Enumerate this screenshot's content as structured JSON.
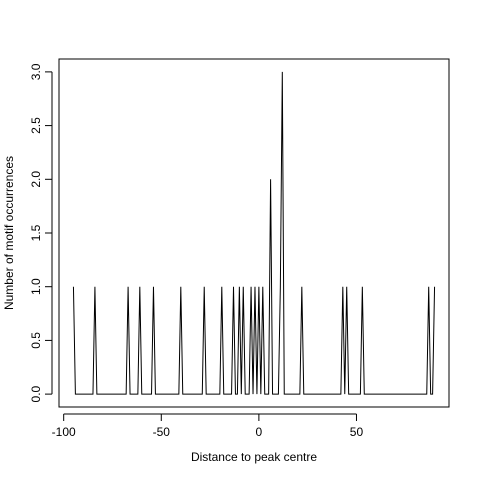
{
  "chart_data": {
    "type": "line",
    "xlabel": "Distance to peak centre",
    "ylabel": "Number of motif occurrences",
    "x": [
      -95,
      -94,
      -85,
      -84,
      -83,
      -68,
      -67,
      -66,
      -62,
      -61,
      -60,
      -55,
      -54,
      -53,
      -41,
      -40,
      -39,
      -29,
      -28,
      -27,
      -20,
      -19,
      -18,
      -14,
      -13,
      -12,
      -11,
      -10,
      -9,
      -8,
      -7,
      -5,
      -4,
      -3,
      -2,
      -1,
      0,
      1,
      2,
      3,
      5,
      6,
      7,
      10,
      11,
      12,
      13,
      21,
      22,
      23,
      42,
      43,
      44,
      45,
      46,
      52,
      53,
      54,
      86,
      87,
      88,
      89,
      90
    ],
    "values": [
      1,
      0,
      0,
      1,
      0,
      0,
      1,
      0,
      0,
      1,
      0,
      0,
      1,
      0,
      0,
      1,
      0,
      0,
      1,
      0,
      0,
      1,
      0,
      0,
      1,
      0,
      0,
      1,
      0,
      1,
      0,
      0,
      1,
      0,
      1,
      0,
      1,
      0,
      1,
      0,
      0,
      2,
      0,
      0,
      1,
      3,
      0,
      0,
      1,
      0,
      0,
      1,
      0,
      1,
      0,
      0,
      1,
      0,
      0,
      1,
      0,
      0,
      1
    ],
    "color": "#000000",
    "xlim": [
      -102.4,
      97.4
    ],
    "xticks": [
      -100,
      -50,
      0,
      50
    ],
    "ylim": [
      -0.12,
      3.12
    ],
    "yticks": [
      {
        "value": 0,
        "label": "0.0"
      },
      0.5,
      {
        "value": 1,
        "label": "1.0"
      },
      1.5,
      {
        "value": 2,
        "label": "2.0"
      },
      2.5,
      {
        "value": 3,
        "label": "3.0"
      }
    ]
  }
}
